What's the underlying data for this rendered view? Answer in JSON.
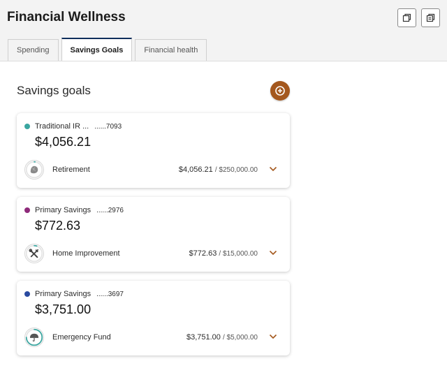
{
  "app": {
    "title": "Financial Wellness"
  },
  "header": {
    "icons": [
      "window-restore-icon",
      "copy-icon"
    ]
  },
  "tabs": [
    {
      "label": "Spending",
      "active": false
    },
    {
      "label": "Savings Goals",
      "active": true
    },
    {
      "label": "Financial health",
      "active": false
    }
  ],
  "savings": {
    "title": "Savings goals",
    "add_icon": "plus-circle-icon",
    "goals": [
      {
        "account_name": "Traditional IR ...",
        "account_number": "......7093",
        "balance": "$4,056.21",
        "dot_color": "#3aa6a0",
        "goal_name": "Retirement",
        "goal_icon": "retirement-icon",
        "current": "$4,056.21",
        "target": "/ $250,000.00",
        "progress": 0.016
      },
      {
        "account_name": "Primary Savings",
        "account_number": "......2976",
        "balance": "$772.63",
        "dot_color": "#8e2a7a",
        "goal_name": "Home Improvement",
        "goal_icon": "tools-icon",
        "current": "$772.63",
        "target": "/ $15,000.00",
        "progress": 0.052
      },
      {
        "account_name": "Primary Savings",
        "account_number": "......3697",
        "balance": "$3,751.00",
        "dot_color": "#2a4aa0",
        "goal_name": "Emergency Fund",
        "goal_icon": "umbrella-icon",
        "current": "$3,751.00",
        "target": "/ $5,000.00",
        "progress": 0.75
      }
    ]
  },
  "colors": {
    "accent": "#a4581e",
    "tab_active_border": "#0f2f5b",
    "ring": "#3aa6a0"
  }
}
